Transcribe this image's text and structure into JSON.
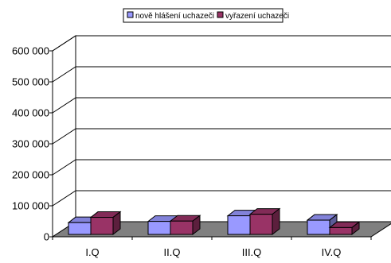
{
  "chart_data": {
    "type": "bar",
    "categories": [
      "I.Q",
      "II.Q",
      "III.Q",
      "IV.Q"
    ],
    "series": [
      {
        "name": "nově hlášení uchazeči",
        "values": [
          38000,
          42000,
          60000,
          46000
        ],
        "color": "#9999ff"
      },
      {
        "name": "vyřazení uchazeči",
        "values": [
          55000,
          43000,
          65000,
          22000
        ],
        "color": "#993366"
      }
    ],
    "yticks": [
      "0",
      "100 000",
      "200 000",
      "300 000",
      "400 000",
      "500 000",
      "600 000"
    ],
    "ylim": [
      0,
      600000
    ],
    "grid": true,
    "legend": "top",
    "three_d": true
  }
}
